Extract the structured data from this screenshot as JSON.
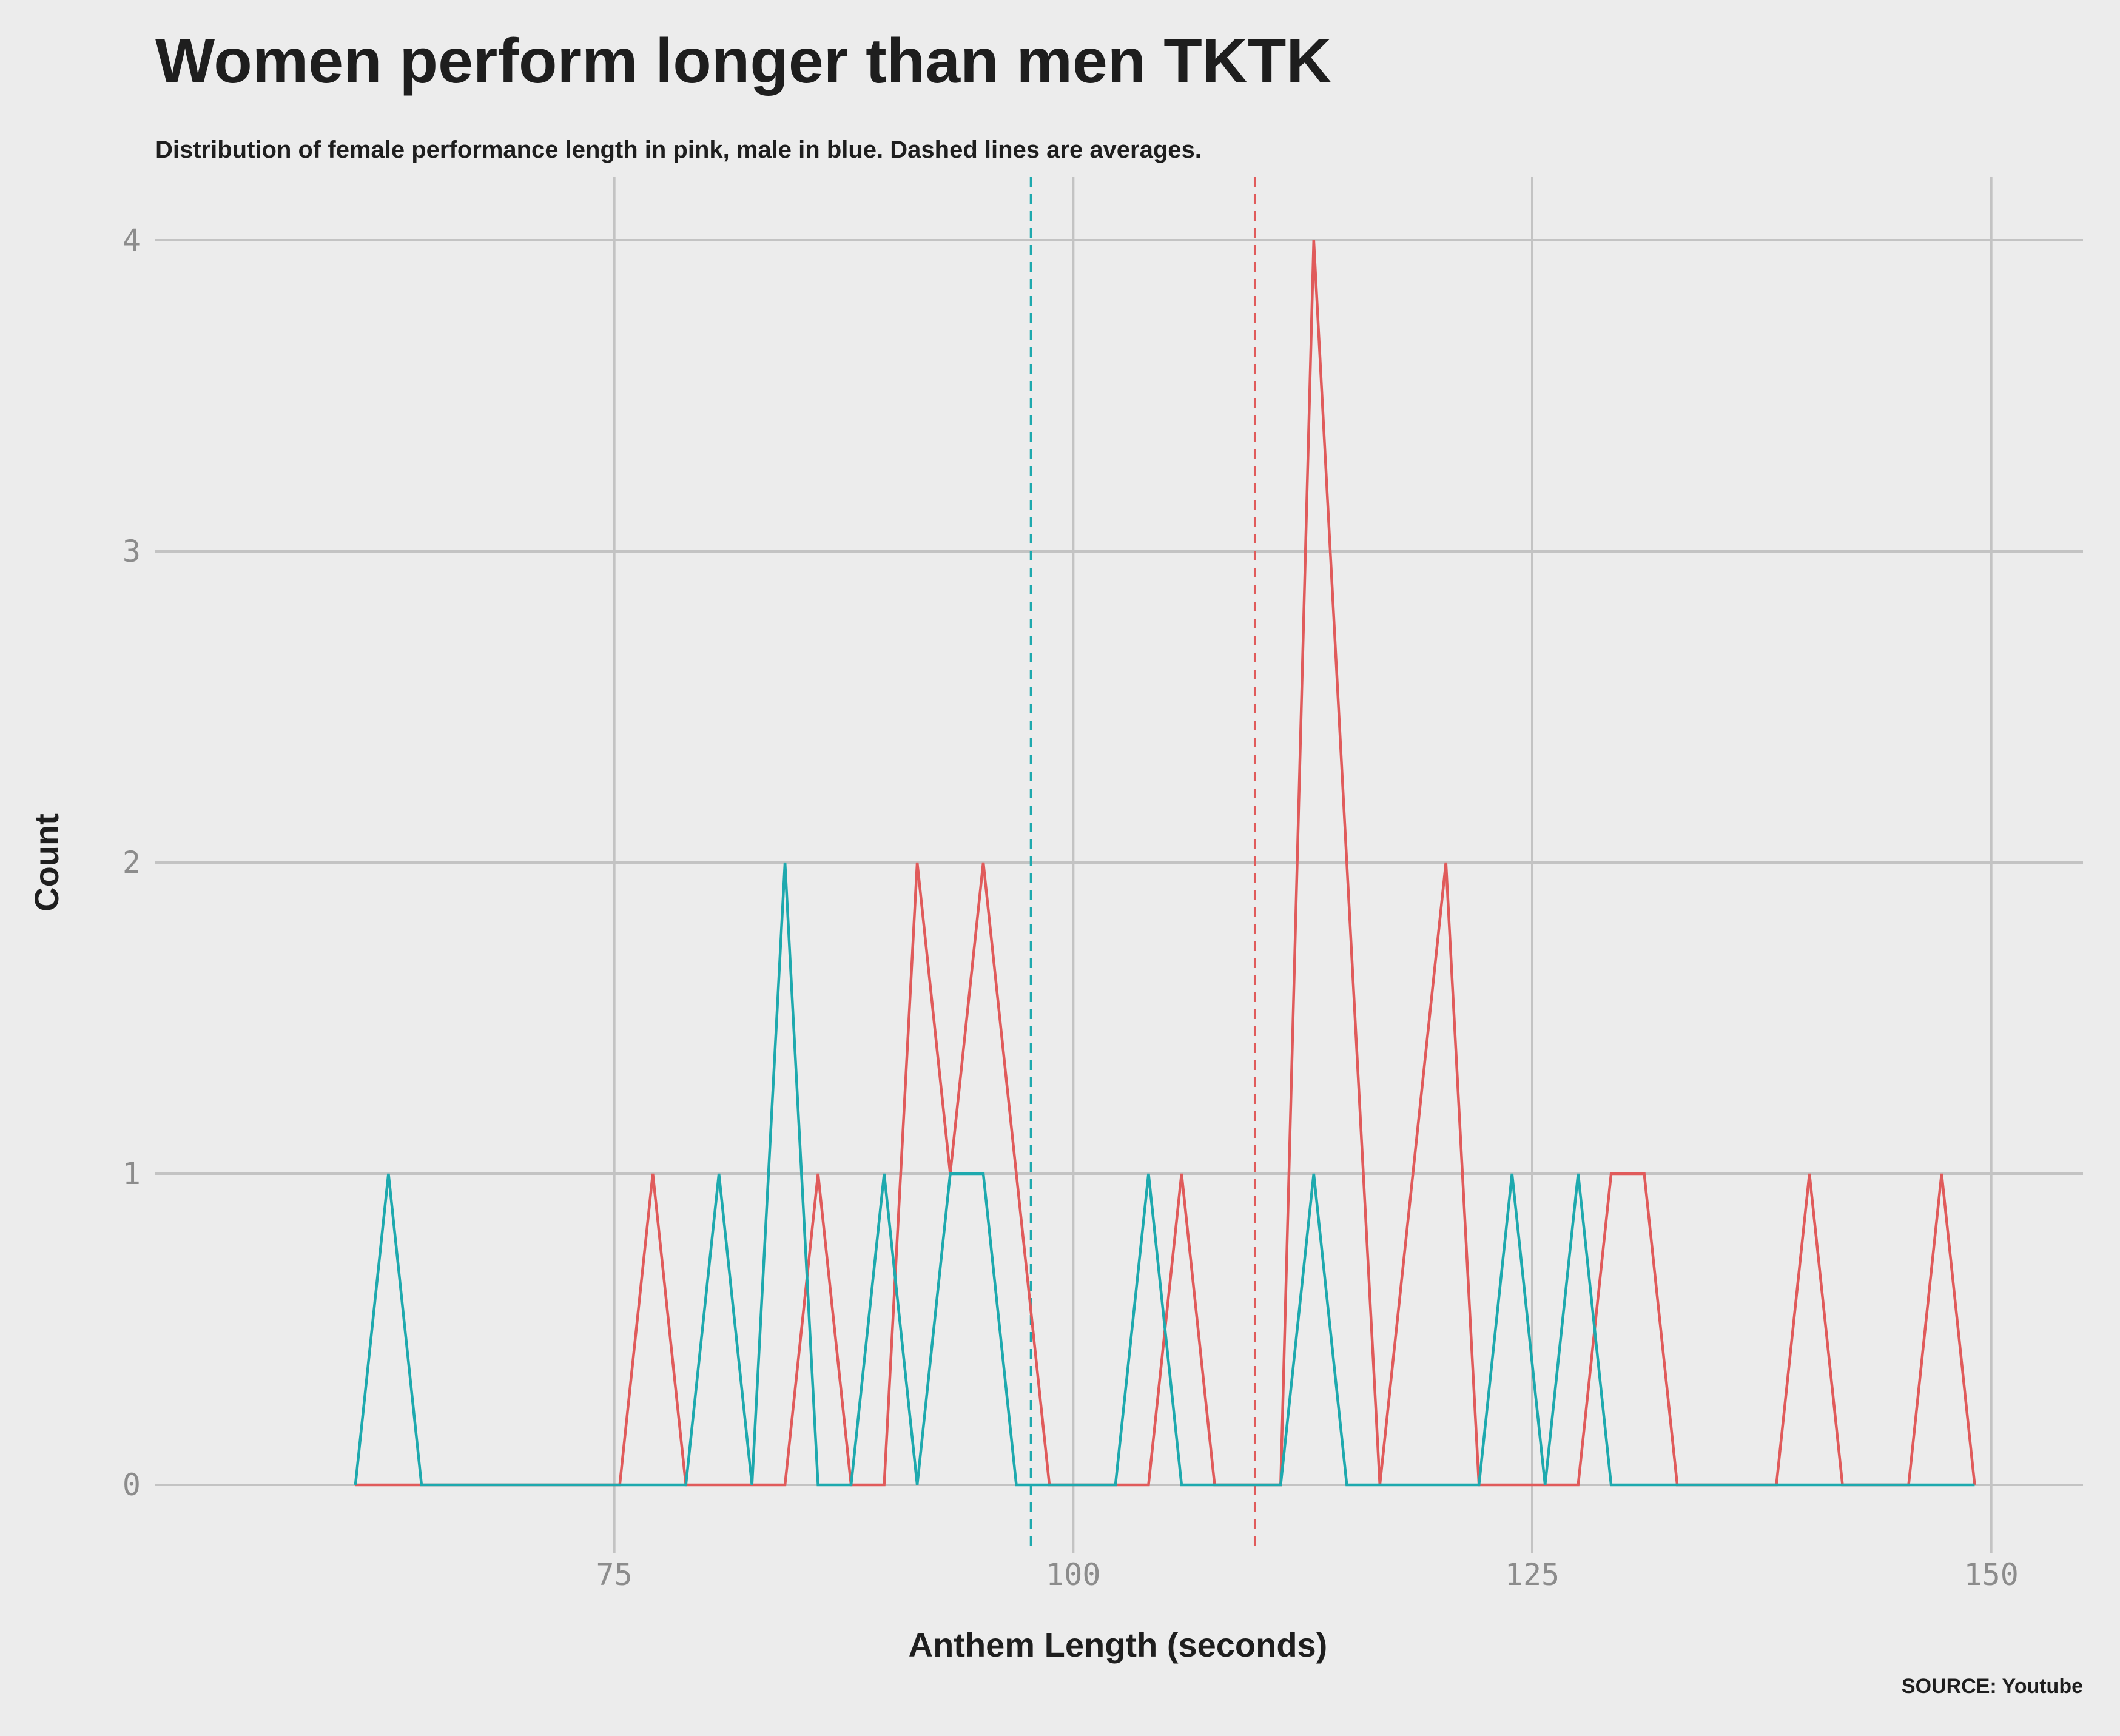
{
  "chart_data": {
    "type": "line",
    "title": "Women perform longer than men TKTK",
    "subtitle": "Distribution of female performance length in pink, male in blue. Dashed lines are averages.",
    "xlabel": "Anthem Length (seconds)",
    "ylabel": "Count",
    "source": "SOURCE: Youtube",
    "xlim": [
      50,
      155
    ],
    "ylim": [
      0,
      4
    ],
    "xticks": [
      75,
      100,
      125,
      150
    ],
    "yticks": [
      0,
      1,
      2,
      3,
      4
    ],
    "grid": true,
    "series": [
      {
        "color": "#e05b5b",
        "x": [
          60.9,
          64.5,
          68.1,
          71.7,
          75.3,
          77.1,
          78.9,
          82.5,
          84.3,
          86.1,
          87.9,
          89.7,
          91.5,
          93.3,
          95.1,
          96.9,
          98.7,
          102.3,
          104.1,
          105.9,
          107.7,
          109.5,
          111.3,
          113.1,
          114.9,
          116.7,
          118.5,
          120.3,
          122.1,
          123.9,
          125.7,
          127.5,
          129.3,
          131.1,
          132.9,
          138.3,
          140.1,
          141.9,
          145.5,
          147.3,
          149.1
        ],
        "values": [
          0,
          0,
          0,
          0,
          0,
          1,
          0,
          0,
          0,
          1,
          0,
          0,
          2,
          1,
          2,
          1,
          0,
          0,
          0,
          1,
          0,
          0,
          0,
          4,
          2,
          0,
          1,
          2,
          0,
          0,
          0,
          0,
          1,
          1,
          0,
          0,
          1,
          0,
          0,
          1,
          0
        ]
      },
      {
        "color": "#1ea9ae",
        "x": [
          60.9,
          62.7,
          64.5,
          68.1,
          71.7,
          75.3,
          78.9,
          80.7,
          82.5,
          84.3,
          86.1,
          87.9,
          89.7,
          91.5,
          93.3,
          95.1,
          96.9,
          98.7,
          102.3,
          104.1,
          105.9,
          109.5,
          111.3,
          113.1,
          114.9,
          116.7,
          120.3,
          122.1,
          123.9,
          125.7,
          127.5,
          129.3,
          131.1,
          134.7,
          138.3,
          141.9,
          145.5,
          149.1
        ],
        "values": [
          0,
          1,
          0,
          0,
          0,
          0,
          0,
          1,
          0,
          2,
          0,
          0,
          1,
          0,
          1,
          1,
          0,
          0,
          0,
          1,
          0,
          0,
          0,
          1,
          0,
          0,
          0,
          0,
          1,
          0,
          1,
          0,
          0,
          0,
          0,
          0,
          0,
          0
        ]
      }
    ],
    "averages": [
      {
        "x": 97.7,
        "color": "#1ea9ae"
      },
      {
        "x": 109.9,
        "color": "#e05b5b"
      }
    ]
  }
}
